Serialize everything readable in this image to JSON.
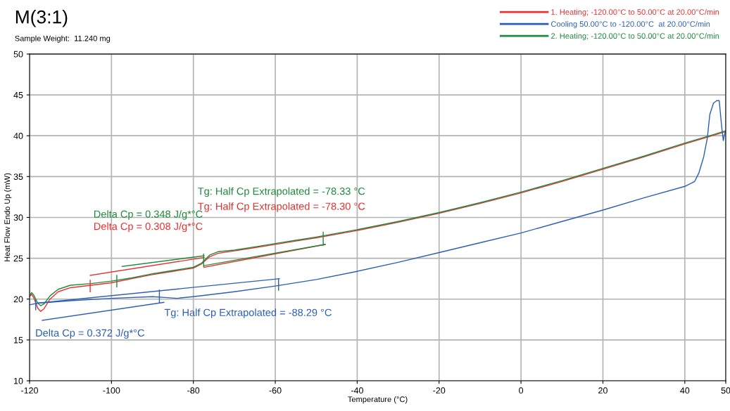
{
  "chart_data": {
    "type": "line",
    "title": "M(3:1)",
    "subtitle": "Sample Weight:  11.240 mg",
    "xlabel": "Temperature (°C)",
    "ylabel": "Heat Flow Endo Up (mW)",
    "xlim": [
      -120,
      50
    ],
    "xticks": [
      -120,
      -100,
      -80,
      -60,
      -40,
      -20,
      0,
      20,
      40,
      50
    ],
    "ylim": [
      10,
      50
    ],
    "yticks": [
      10,
      15,
      20,
      25,
      30,
      35,
      40,
      45,
      50
    ],
    "grid": true,
    "legend": "top right",
    "line_style": "solid",
    "marker": "none",
    "series": [
      {
        "name": "1. Heating; -120.00°C to 50.00°C at 20.00°C/min",
        "color": "#e8312f",
        "x": [
          -120,
          -119.5,
          -119,
          -118,
          -117.3,
          -116.5,
          -115,
          -113,
          -110,
          -105,
          -100,
          -95,
          -90,
          -85,
          -80,
          -78,
          -76,
          -74,
          -70,
          -65,
          -60,
          -55,
          -50,
          -40,
          -30,
          -20,
          -10,
          0,
          10,
          20,
          30,
          40,
          48,
          50
        ],
        "values": [
          20.3,
          20.6,
          20.2,
          18.9,
          18.5,
          18.8,
          20.0,
          20.9,
          21.4,
          21.7,
          22.0,
          22.5,
          23.0,
          23.4,
          23.8,
          24.3,
          25.2,
          25.6,
          25.9,
          26.3,
          26.7,
          27.1,
          27.5,
          28.4,
          29.4,
          30.5,
          31.7,
          33.0,
          34.4,
          35.9,
          37.4,
          39.0,
          40.2,
          40.5
        ]
      },
      {
        "name": "Cooling 50.00°C to -120.00°C  at 20.00°C/min",
        "color": "#2c5fb3",
        "x": [
          -120,
          -118,
          -110,
          -100,
          -90,
          -87,
          -84,
          -80,
          -70,
          -60,
          -50,
          -40,
          -30,
          -20,
          -10,
          0,
          10,
          20,
          30,
          40,
          42.4,
          43.4,
          44.6,
          45.5,
          46.1,
          47,
          47.8,
          48.4,
          49,
          49.4,
          49.7,
          50
        ],
        "values": [
          19.3,
          19.5,
          19.8,
          20.1,
          20.3,
          20.2,
          20.1,
          20.3,
          20.9,
          21.6,
          22.4,
          23.4,
          24.5,
          25.7,
          26.9,
          28.1,
          29.5,
          30.9,
          32.4,
          33.8,
          34.4,
          35.4,
          37.4,
          39.7,
          42.6,
          44.0,
          44.3,
          44.3,
          41.1,
          39.4,
          40.2,
          40.6
        ]
      },
      {
        "name": "2. Heating; -120.00°C to 50.00°C at 20.00°C/min",
        "color": "#1f8a3c",
        "x": [
          -120,
          -119.5,
          -119,
          -118,
          -117.3,
          -116.5,
          -115,
          -113,
          -110,
          -105,
          -100,
          -95,
          -90,
          -85,
          -80,
          -78,
          -76,
          -74,
          -70,
          -65,
          -60,
          -55,
          -50,
          -40,
          -30,
          -20,
          -10,
          0,
          10,
          20,
          30,
          40,
          48,
          50
        ],
        "values": [
          20.4,
          20.8,
          20.5,
          19.5,
          19.2,
          19.4,
          20.4,
          21.2,
          21.7,
          21.9,
          22.2,
          22.6,
          23.1,
          23.5,
          23.9,
          24.4,
          25.4,
          25.8,
          26.0,
          26.4,
          26.8,
          27.2,
          27.6,
          28.5,
          29.5,
          30.6,
          31.8,
          33.1,
          34.5,
          36.0,
          37.5,
          39.1,
          40.3,
          40.6
        ]
      },
      {
        "color": "#e8312f",
        "x": [
          -105.2,
          -77.4
        ],
        "values": [
          22.9,
          25.1
        ]
      },
      {
        "color": "#e8312f",
        "x": [
          -77.4,
          -47.8
        ],
        "values": [
          23.9,
          26.7
        ]
      },
      {
        "color": "#1f8a3c",
        "x": [
          -97.4,
          -77.4
        ],
        "values": [
          24.0,
          25.3
        ]
      },
      {
        "color": "#1f8a3c",
        "x": [
          -77.4,
          -47.8
        ],
        "values": [
          24.1,
          26.7
        ]
      },
      {
        "color": "#2c5fb3",
        "x": [
          -118.1,
          -59
        ],
        "values": [
          19.5,
          22.5
        ]
      },
      {
        "color": "#2c5fb3",
        "x": [
          -116.9,
          -87.2
        ],
        "values": [
          17.4,
          19.6
        ]
      },
      {
        "color": "#e8312f",
        "x": [
          -105.2,
          -105.2
        ],
        "values": [
          20.9,
          22.3
        ]
      },
      {
        "color": "#1f8a3c",
        "x": [
          -98.7,
          -98.7
        ],
        "values": [
          21.5,
          22.9
        ]
      },
      {
        "color": "#1f8a3c",
        "x": [
          -77.5,
          -77.5
        ],
        "values": [
          24.0,
          25.5
        ]
      },
      {
        "color": "#1f8a3c",
        "x": [
          -48.3,
          -48.3
        ],
        "values": [
          26.6,
          28.2
        ]
      },
      {
        "color": "#2c5fb3",
        "x": [
          -59.2,
          -59.2
        ],
        "values": [
          21.1,
          22.5
        ]
      },
      {
        "color": "#2c5fb3",
        "x": [
          -88.3,
          -88.3
        ],
        "values": [
          19.6,
          21.1
        ]
      },
      {
        "color": "#2c5fb3",
        "x": [
          -118.5,
          -118.5
        ],
        "values": [
          18.7,
          19.9
        ]
      }
    ],
    "annotations": [
      "Tg: Half Cp Extrapolated = -78.33 °C",
      "Tg: Half Cp Extrapolated = -78.30 °C",
      "Delta Cp = 0.348 J/g*°C",
      "Delta Cp = 0.308 J/g*°C",
      "Tg: Half Cp Extrapolated = -88.29 °C",
      "Delta Cp = 0.372 J/g*°C"
    ]
  }
}
